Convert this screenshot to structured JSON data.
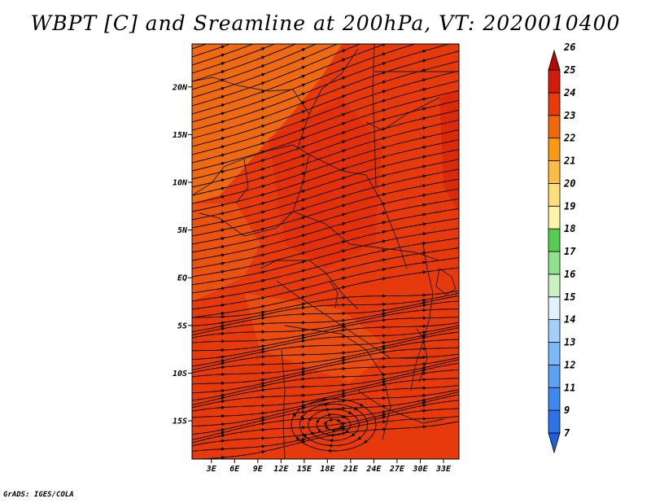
{
  "title": "WBPT [C] and Sreamline at 200hPa, VT: 2020010400",
  "credit": "GrADS: IGES/COLA",
  "map": {
    "lat_range": [
      -19,
      24.5
    ],
    "lon_range": [
      0.5,
      35
    ],
    "lat_ticks": [
      {
        "value": 20,
        "label": "20N"
      },
      {
        "value": 15,
        "label": "15N"
      },
      {
        "value": 10,
        "label": "10N"
      },
      {
        "value": 5,
        "label": "5N"
      },
      {
        "value": 0,
        "label": "EQ"
      },
      {
        "value": -5,
        "label": "5S"
      },
      {
        "value": -10,
        "label": "10S"
      },
      {
        "value": -15,
        "label": "15S"
      }
    ],
    "lon_ticks": [
      {
        "value": 3,
        "label": "3E"
      },
      {
        "value": 6,
        "label": "6E"
      },
      {
        "value": 9,
        "label": "9E"
      },
      {
        "value": 12,
        "label": "12E"
      },
      {
        "value": 15,
        "label": "15E"
      },
      {
        "value": 18,
        "label": "18E"
      },
      {
        "value": 21,
        "label": "21E"
      },
      {
        "value": 24,
        "label": "24E"
      },
      {
        "value": 27,
        "label": "27E"
      },
      {
        "value": 30,
        "label": "30E"
      },
      {
        "value": 33,
        "label": "33E"
      }
    ]
  },
  "colorbar": {
    "levels": [
      "7",
      "9",
      "11",
      "12",
      "13",
      "14",
      "15",
      "16",
      "17",
      "18",
      "19",
      "20",
      "21",
      "22",
      "23",
      "24",
      "25",
      "26"
    ],
    "colors": [
      "#1f5fdc",
      "#2b73e6",
      "#3c8aee",
      "#5aa2f4",
      "#7ab9f7",
      "#a2d0fa",
      "#dff2fb",
      "#c9f2c2",
      "#8fe28b",
      "#56cc50",
      "#fff5a8",
      "#fde07a",
      "#fcbd44",
      "#f89a14",
      "#f06a0c",
      "#e83a0a",
      "#d41a08",
      "#b40a06"
    ]
  },
  "field": {
    "base_color": "#e63a0c",
    "patches": [
      {
        "name": "nw-warm-band",
        "color": "#ee6a12"
      },
      {
        "name": "west-coast-pale",
        "color": "#ea5210"
      },
      {
        "name": "central-dark",
        "color": "#e2300a"
      },
      {
        "name": "south-light",
        "color": "#ea4d10"
      },
      {
        "name": "east-dark",
        "color": "#dc2a08"
      }
    ]
  }
}
